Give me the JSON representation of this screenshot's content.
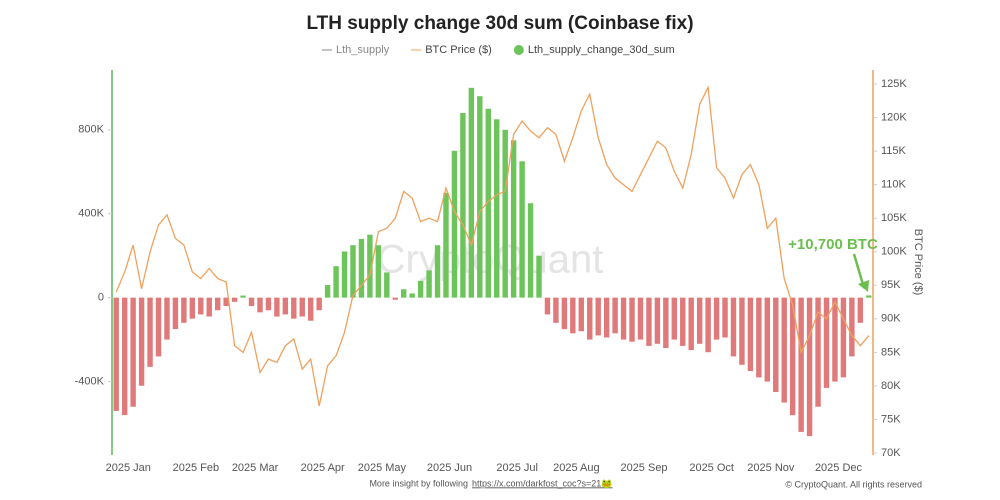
{
  "chart_data": {
    "type": "bar_line",
    "title": "LTH supply change 30d sum (Coinbase fix)",
    "legend_hidden": "Lth_supply",
    "watermark": "CryptoQuant",
    "annotation": "+10,700 BTC",
    "annotation_color": "#6cbf4f",
    "footer": "More insight by following",
    "footer_link": "https://x.com/darkfost_coc?s=21🐸",
    "copyright": "© CryptoQuant. All rights reserved",
    "y2label": "BTC Price ($)",
    "categories": [
      "2025 Jan",
      null,
      null,
      null,
      null,
      null,
      null,
      null,
      "2025 Feb",
      null,
      null,
      null,
      null,
      null,
      null,
      "2025 Mar",
      null,
      null,
      null,
      null,
      null,
      null,
      null,
      "2025 Apr",
      null,
      null,
      null,
      null,
      null,
      null,
      "2025 May",
      null,
      null,
      null,
      null,
      null,
      null,
      null,
      "2025 Jun",
      null,
      null,
      null,
      null,
      null,
      null,
      null,
      "2025 Jul",
      null,
      null,
      null,
      null,
      null,
      null,
      "2025 Aug",
      null,
      null,
      null,
      null,
      null,
      null,
      null,
      "2025 Sep",
      null,
      null,
      null,
      null,
      null,
      null,
      null,
      "2025 Oct",
      null,
      null,
      null,
      null,
      null,
      null,
      "2025 Nov",
      null,
      null,
      null,
      null,
      null,
      null,
      null,
      "2025 Dec",
      null,
      null,
      null,
      null,
      null
    ],
    "ylim": [
      -750000,
      1085000
    ],
    "yticks": [
      {
        "value": -400000,
        "label": "-400K"
      },
      0,
      {
        "value": 400000,
        "label": "400K"
      },
      {
        "value": 800000,
        "label": "800K"
      }
    ],
    "y2lim": [
      69700,
      127100
    ],
    "y2ticks": [
      {
        "value": 70000,
        "label": "70K"
      },
      {
        "value": 75000,
        "label": "75K"
      },
      {
        "value": 80000,
        "label": "80K"
      },
      {
        "value": 85000,
        "label": "85K"
      },
      {
        "value": 90000,
        "label": "90K"
      },
      {
        "value": 95000,
        "label": "95K"
      },
      {
        "value": 100000,
        "label": "100K"
      },
      {
        "value": 105000,
        "label": "105K"
      },
      {
        "value": 110000,
        "label": "110K"
      },
      {
        "value": 115000,
        "label": "115K"
      },
      {
        "value": 120000,
        "label": "120K"
      },
      {
        "value": 125000,
        "label": "125K"
      }
    ],
    "legend_hidden_color": "#888888",
    "series": [
      {
        "name": "BTC Price ($)",
        "type": "line",
        "axis": "y2",
        "color": "#f0a15e",
        "values": [
          94000,
          97000,
          101000,
          94500,
          100000,
          104000,
          105500,
          102000,
          101000,
          97000,
          96000,
          97500,
          96000,
          95500,
          86000,
          85000,
          88000,
          82000,
          84000,
          83500,
          86000,
          87000,
          82500,
          84000,
          77000,
          83000,
          84500,
          88000,
          93500,
          95000,
          96500,
          103000,
          103500,
          105000,
          109000,
          108000,
          104500,
          105000,
          104500,
          109500,
          106000,
          104000,
          101000,
          106000,
          107500,
          108500,
          109000,
          117500,
          119500,
          118000,
          117000,
          118500,
          117500,
          113500,
          117000,
          121000,
          123500,
          117000,
          113000,
          111000,
          110000,
          109000,
          111500,
          114000,
          116500,
          115500,
          112000,
          109500,
          114500,
          122000,
          124500,
          112500,
          111000,
          108000,
          111500,
          113000,
          110000,
          103500,
          105000,
          96000,
          92000,
          85000,
          87500,
          91000,
          90000,
          92500,
          90000,
          87500,
          86000,
          87500
        ]
      },
      {
        "name": "Lth_supply_change_30d_sum",
        "type": "bar",
        "color": "#6cc45a",
        "negative_color": "#e07a7a",
        "values": [
          -540000,
          -560000,
          -520000,
          -420000,
          -330000,
          -280000,
          -200000,
          -150000,
          -120000,
          -100000,
          -80000,
          -90000,
          -60000,
          -40000,
          -20000,
          10000,
          -40000,
          -70000,
          -60000,
          -90000,
          -80000,
          -100000,
          -90000,
          -110000,
          -60000,
          60000,
          150000,
          220000,
          250000,
          280000,
          300000,
          250000,
          120000,
          -10000,
          40000,
          20000,
          80000,
          130000,
          250000,
          500000,
          700000,
          880000,
          1000000,
          960000,
          900000,
          850000,
          800000,
          750000,
          650000,
          450000,
          200000,
          -80000,
          -120000,
          -150000,
          -170000,
          -160000,
          -200000,
          -180000,
          -190000,
          -170000,
          -200000,
          -210000,
          -200000,
          -230000,
          -220000,
          -240000,
          -200000,
          -230000,
          -250000,
          -220000,
          -260000,
          -200000,
          -190000,
          -280000,
          -320000,
          -350000,
          -380000,
          -400000,
          -450000,
          -500000,
          -560000,
          -640000,
          -660000,
          -520000,
          -430000,
          -400000,
          -380000,
          -280000,
          -120000,
          10700
        ]
      }
    ]
  }
}
